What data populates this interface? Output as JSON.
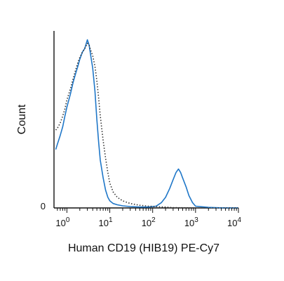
{
  "chart_data": {
    "type": "line",
    "title": "",
    "xlabel": "Human CD19 (HIB19) PE-Cy7",
    "ylabel": "Count",
    "x_scale": "log",
    "xlim": [
      0.5,
      10000
    ],
    "ylim": [
      0,
      100
    ],
    "x_ticks": [
      {
        "base": "10",
        "exp": "0",
        "value": 1
      },
      {
        "base": "10",
        "exp": "1",
        "value": 10
      },
      {
        "base": "10",
        "exp": "2",
        "value": 100
      },
      {
        "base": "10",
        "exp": "3",
        "value": 1000
      },
      {
        "base": "10",
        "exp": "4",
        "value": 10000
      }
    ],
    "y_ticks": [
      {
        "label": "0",
        "value": 0
      }
    ],
    "grid": false,
    "series": [
      {
        "style": "solid",
        "color": "#1f77c8",
        "x": [
          0.55,
          0.6,
          0.7,
          0.8,
          0.9,
          1.0,
          1.2,
          1.4,
          1.6,
          1.8,
          2.0,
          2.3,
          2.6,
          3.0,
          3.3,
          3.6,
          4.0,
          4.5,
          5.0,
          5.5,
          6.0,
          7.0,
          8.0,
          9.0,
          10,
          12,
          15,
          20,
          30,
          50,
          80,
          120,
          160,
          200,
          250,
          300,
          350,
          400,
          450,
          500,
          600,
          700,
          850,
          1000,
          2000,
          5000,
          10000
        ],
        "y": [
          33,
          36,
          41,
          46,
          52,
          57,
          64,
          71,
          76,
          80,
          84,
          88,
          90,
          95,
          92,
          86,
          79,
          66,
          50,
          37,
          27,
          17,
          10,
          6,
          4,
          2.5,
          1.8,
          1.2,
          0.8,
          0.5,
          0.5,
          1,
          3,
          6,
          11,
          16,
          20,
          22,
          20,
          17,
          12,
          7,
          3,
          1,
          0.3,
          0,
          0
        ]
      },
      {
        "style": "dotted",
        "color": "#333333",
        "x": [
          0.55,
          0.6,
          0.7,
          0.8,
          0.9,
          1.0,
          1.2,
          1.4,
          1.6,
          1.8,
          2.0,
          2.3,
          2.6,
          3.0,
          3.3,
          3.6,
          4.0,
          4.5,
          5.0,
          5.5,
          6.0,
          7.0,
          8.0,
          9.0,
          10,
          12,
          15,
          20,
          30,
          50,
          80,
          120,
          160,
          200,
          250,
          300,
          500,
          1000,
          5000,
          10000
        ],
        "y": [
          44,
          45,
          48,
          52,
          56,
          61,
          67,
          73,
          78,
          82,
          85,
          88,
          90,
          93,
          92,
          89,
          86,
          80,
          72,
          62,
          52,
          38,
          28,
          20,
          14,
          9,
          6,
          4,
          2.5,
          1.5,
          1,
          0.8,
          0.6,
          0.5,
          0.3,
          0.2,
          0.1,
          0,
          0,
          0
        ]
      }
    ]
  }
}
